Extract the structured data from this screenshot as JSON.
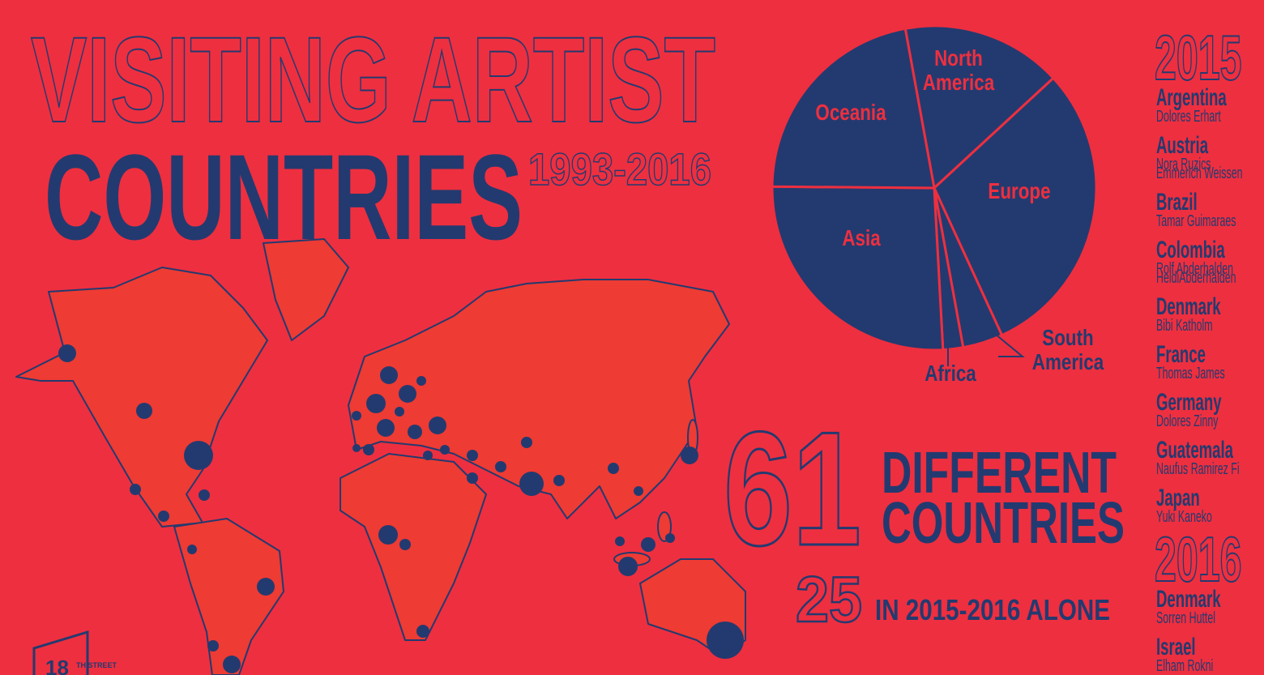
{
  "title": {
    "line1": "VISITING ARTIST",
    "line2": "COUNTRIES",
    "years": "1993-2016"
  },
  "chart_data": {
    "type": "pie",
    "categories": [
      "North America",
      "Europe",
      "South America",
      "Africa",
      "Asia",
      "Oceania"
    ],
    "values": [
      16,
      30,
      4,
      2,
      26,
      22
    ],
    "color": "#233a70"
  },
  "stats": {
    "total": 61,
    "total_label_1": "DIFFERENT",
    "total_label_2": "COUNTRIES",
    "recent": 25,
    "recent_label": "IN 2015-2016 ALONE"
  },
  "artists": [
    {
      "year": "2015",
      "countries": [
        {
          "name": "Argentina",
          "artists": [
            "Dolores Erhart"
          ]
        },
        {
          "name": "Austria",
          "artists": [
            "Nora Ruzics",
            "Emmerich Weissen"
          ]
        },
        {
          "name": "Brazil",
          "artists": [
            "Tamar Guimaraes"
          ]
        },
        {
          "name": "Colombia",
          "artists": [
            "Rolf Abderhalden",
            "HeidiAbderhalden"
          ]
        },
        {
          "name": "Denmark",
          "artists": [
            "Bibi Katholm"
          ]
        },
        {
          "name": "France",
          "artists": [
            "Thomas James"
          ]
        },
        {
          "name": "Germany",
          "artists": [
            "Dolores Zinny"
          ]
        },
        {
          "name": "Guatemala",
          "artists": [
            "Naufus Ramirez Fi"
          ]
        },
        {
          "name": "Japan",
          "artists": [
            "Yuki Kaneko"
          ]
        }
      ]
    },
    {
      "year": "2016",
      "countries": [
        {
          "name": "Denmark",
          "artists": [
            "Sorren Huttel"
          ]
        },
        {
          "name": "Israel",
          "artists": [
            "Elham Rokni"
          ]
        }
      ]
    }
  ],
  "logo": {
    "number": "18",
    "text": "TH STREET"
  }
}
